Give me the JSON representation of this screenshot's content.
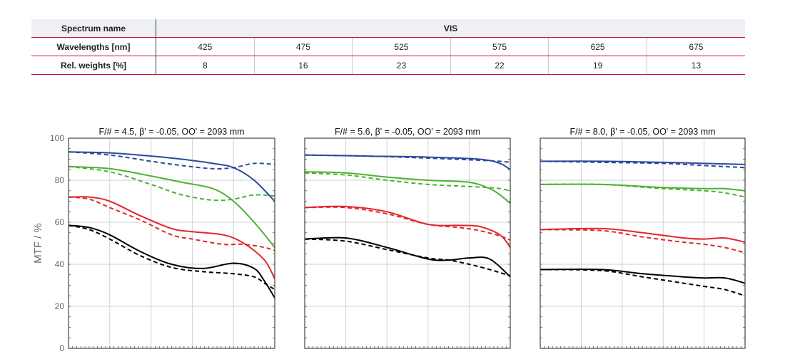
{
  "table": {
    "rows": [
      {
        "label": "Spectrum name",
        "values": [
          "VIS"
        ]
      },
      {
        "label": "Wavelengths [nm]",
        "values": [
          "425",
          "475",
          "525",
          "575",
          "625",
          "675"
        ]
      },
      {
        "label": "Rel. weights [%]",
        "values": [
          "8",
          "16",
          "23",
          "22",
          "19",
          "13"
        ]
      }
    ]
  },
  "chart_data": [
    {
      "type": "line",
      "title": "F/# = 4.5, β' = -0.05, OO' = 2093 mm",
      "ylabel": "MTF / %",
      "ylim": [
        0,
        100
      ],
      "xlim": [
        0,
        1
      ],
      "yticks": [
        "0",
        "20",
        "40",
        "60",
        "80",
        "100"
      ],
      "grid": true,
      "series": [
        {
          "color": "#2a4b9b",
          "dash": false,
          "x": [
            0,
            0.2,
            0.4,
            0.55,
            0.7,
            0.8,
            0.9,
            1.0
          ],
          "y": [
            93.5,
            93,
            91.5,
            90,
            88,
            86,
            80,
            70
          ]
        },
        {
          "color": "#2a4b9b",
          "dash": true,
          "x": [
            0,
            0.2,
            0.4,
            0.55,
            0.7,
            0.8,
            0.9,
            1.0
          ],
          "y": [
            93.5,
            92,
            89,
            87,
            85.5,
            86,
            88,
            87.5
          ]
        },
        {
          "color": "#4db132",
          "dash": false,
          "x": [
            0,
            0.2,
            0.4,
            0.55,
            0.7,
            0.8,
            0.9,
            1.0
          ],
          "y": [
            86.5,
            85.5,
            82,
            79,
            76,
            70,
            60,
            48
          ]
        },
        {
          "color": "#4db132",
          "dash": true,
          "x": [
            0,
            0.2,
            0.4,
            0.55,
            0.7,
            0.8,
            0.9,
            1.0
          ],
          "y": [
            86.5,
            84,
            78,
            73,
            70.5,
            71,
            73,
            72.5
          ]
        },
        {
          "color": "#e0272d",
          "dash": false,
          "x": [
            0,
            0.1,
            0.2,
            0.35,
            0.5,
            0.6,
            0.75,
            0.85,
            0.95,
            1.0
          ],
          "y": [
            72,
            72,
            70,
            63,
            57,
            55.5,
            54,
            50,
            42,
            33
          ]
        },
        {
          "color": "#e0272d",
          "dash": true,
          "x": [
            0,
            0.1,
            0.2,
            0.35,
            0.5,
            0.6,
            0.75,
            0.85,
            0.95,
            1.0
          ],
          "y": [
            72,
            71,
            67,
            61,
            54,
            52,
            49.5,
            49.5,
            48,
            46.5
          ]
        },
        {
          "color": "#000000",
          "dash": false,
          "x": [
            0,
            0.1,
            0.2,
            0.35,
            0.5,
            0.65,
            0.8,
            0.9,
            0.95,
            1.0
          ],
          "y": [
            58.5,
            57.5,
            54,
            46,
            40,
            38,
            40.5,
            38,
            32,
            24
          ]
        },
        {
          "color": "#000000",
          "dash": true,
          "x": [
            0,
            0.1,
            0.2,
            0.35,
            0.5,
            0.65,
            0.8,
            0.9,
            0.95,
            1.0
          ],
          "y": [
            58.5,
            56.5,
            52,
            44,
            38.5,
            36.5,
            35.5,
            34,
            31,
            28
          ]
        }
      ]
    },
    {
      "type": "line",
      "title": "F/# = 5.6, β' = -0.05, OO' = 2093 mm",
      "ylim": [
        0,
        100
      ],
      "xlim": [
        0,
        1
      ],
      "grid": true,
      "series": [
        {
          "color": "#2a4b9b",
          "dash": false,
          "x": [
            0,
            0.3,
            0.6,
            0.85,
            0.95,
            1.0
          ],
          "y": [
            92,
            91.5,
            91,
            90,
            88,
            85
          ]
        },
        {
          "color": "#2a4b9b",
          "dash": true,
          "x": [
            0,
            0.3,
            0.6,
            0.85,
            0.95,
            1.0
          ],
          "y": [
            92,
            91.5,
            90.5,
            89.5,
            89,
            88.5
          ]
        },
        {
          "color": "#4db132",
          "dash": false,
          "x": [
            0,
            0.2,
            0.4,
            0.6,
            0.8,
            0.9,
            0.95,
            1.0
          ],
          "y": [
            84,
            83.5,
            81.5,
            80,
            79,
            76,
            73,
            69
          ]
        },
        {
          "color": "#4db132",
          "dash": true,
          "x": [
            0,
            0.2,
            0.4,
            0.6,
            0.8,
            0.9,
            0.95,
            1.0
          ],
          "y": [
            83.5,
            82.5,
            80,
            78,
            77,
            76.5,
            76,
            75
          ]
        },
        {
          "color": "#e0272d",
          "dash": false,
          "x": [
            0,
            0.2,
            0.4,
            0.6,
            0.75,
            0.85,
            0.95,
            1.0
          ],
          "y": [
            67,
            67.5,
            65,
            59,
            58.5,
            58,
            54,
            48
          ]
        },
        {
          "color": "#e0272d",
          "dash": true,
          "x": [
            0,
            0.2,
            0.4,
            0.6,
            0.75,
            0.85,
            0.95,
            1.0
          ],
          "y": [
            67,
            67,
            64,
            59,
            57.5,
            56,
            53.5,
            51.5
          ]
        },
        {
          "color": "#000000",
          "dash": false,
          "x": [
            0,
            0.2,
            0.4,
            0.6,
            0.7,
            0.8,
            0.9,
            1.0
          ],
          "y": [
            52,
            52.5,
            48,
            42.5,
            42,
            43,
            42.5,
            34
          ]
        },
        {
          "color": "#000000",
          "dash": true,
          "x": [
            0,
            0.2,
            0.4,
            0.6,
            0.7,
            0.8,
            0.9,
            1.0
          ],
          "y": [
            52,
            51,
            47,
            43,
            42,
            40,
            37.5,
            34.5
          ]
        }
      ]
    },
    {
      "type": "line",
      "title": "F/# = 8.0, β' = -0.05, OO' = 2093 mm",
      "ylim": [
        0,
        100
      ],
      "xlim": [
        0,
        1
      ],
      "grid": true,
      "series": [
        {
          "color": "#2a4b9b",
          "dash": false,
          "x": [
            0,
            0.3,
            0.6,
            0.8,
            1.0
          ],
          "y": [
            89,
            89,
            88.5,
            88,
            87.5
          ]
        },
        {
          "color": "#2a4b9b",
          "dash": true,
          "x": [
            0,
            0.3,
            0.6,
            0.8,
            1.0
          ],
          "y": [
            89,
            88.5,
            88,
            87,
            86
          ]
        },
        {
          "color": "#4db132",
          "dash": false,
          "x": [
            0,
            0.3,
            0.6,
            0.8,
            0.9,
            1.0
          ],
          "y": [
            78,
            78,
            76.5,
            76,
            76,
            75
          ]
        },
        {
          "color": "#4db132",
          "dash": true,
          "x": [
            0,
            0.3,
            0.6,
            0.8,
            0.9,
            1.0
          ],
          "y": [
            78,
            78,
            76,
            75,
            74,
            72
          ]
        },
        {
          "color": "#e0272d",
          "dash": false,
          "x": [
            0,
            0.3,
            0.5,
            0.7,
            0.8,
            0.9,
            1.0
          ],
          "y": [
            56.5,
            57,
            55,
            52.5,
            52,
            52.5,
            50.5
          ]
        },
        {
          "color": "#e0272d",
          "dash": true,
          "x": [
            0,
            0.3,
            0.5,
            0.7,
            0.8,
            0.9,
            1.0
          ],
          "y": [
            56.5,
            56,
            53,
            50.5,
            49.5,
            48,
            45.5
          ]
        },
        {
          "color": "#000000",
          "dash": false,
          "x": [
            0,
            0.3,
            0.5,
            0.7,
            0.8,
            0.9,
            1.0
          ],
          "y": [
            37.5,
            37.5,
            35.5,
            34,
            33.5,
            33.5,
            31
          ]
        },
        {
          "color": "#000000",
          "dash": true,
          "x": [
            0,
            0.3,
            0.5,
            0.7,
            0.8,
            0.9,
            1.0
          ],
          "y": [
            37.5,
            37,
            34,
            31,
            29.5,
            28,
            25
          ]
        }
      ]
    }
  ]
}
